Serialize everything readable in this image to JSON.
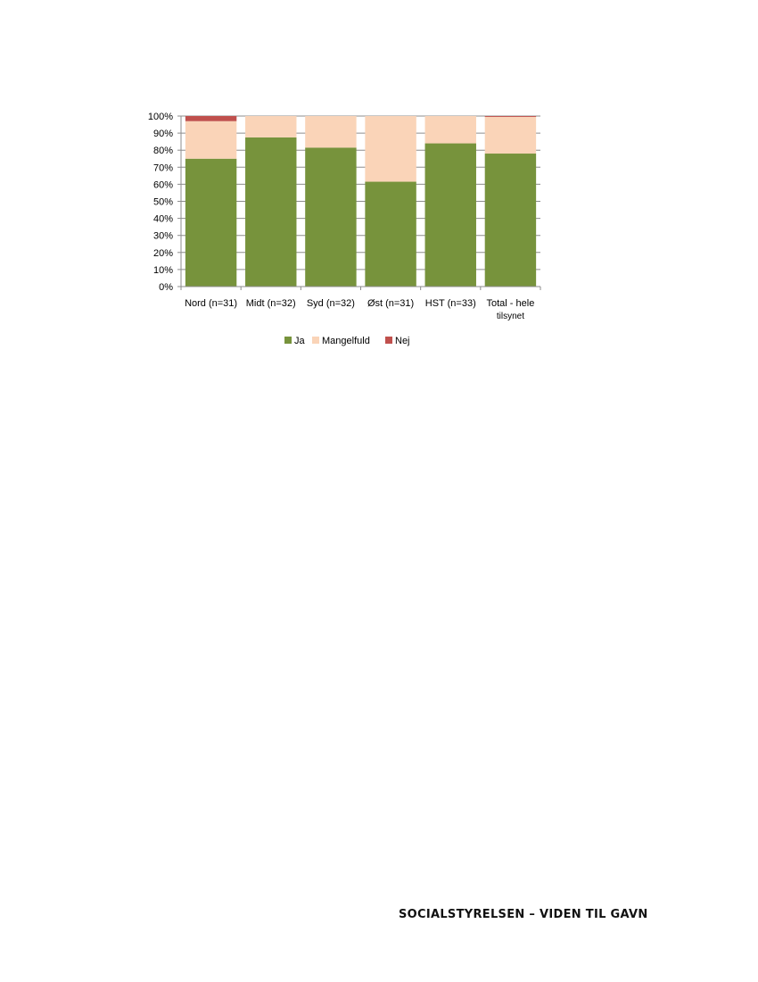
{
  "footer": {
    "text": "SOCIALSTYRELSEN – VIDEN TIL GAVN"
  },
  "chart_data": {
    "type": "bar",
    "stacked": true,
    "percent_axis": true,
    "title": "",
    "xlabel": "",
    "ylabel": "",
    "ylim": [
      0,
      100
    ],
    "yticks": [
      0,
      10,
      20,
      30,
      40,
      50,
      60,
      70,
      80,
      90,
      100
    ],
    "ytick_labels": [
      "0%",
      "10%",
      "20%",
      "30%",
      "40%",
      "50%",
      "60%",
      "70%",
      "80%",
      "90%",
      "100%"
    ],
    "grid": true,
    "legend_position": "bottom",
    "categories": [
      [
        "Nord (n=31)"
      ],
      [
        "Midt (n=32)"
      ],
      [
        "Syd (n=32)"
      ],
      [
        "Øst (n=31)"
      ],
      [
        "HST (n=33)"
      ],
      [
        "Total - hele",
        "tilsynet"
      ]
    ],
    "series": [
      {
        "name": "Ja",
        "color": "#77933C",
        "values": [
          75,
          87.5,
          81.5,
          61.5,
          84,
          78
        ]
      },
      {
        "name": "Mangelfuld",
        "color": "#FAD4B8",
        "values": [
          22,
          12.5,
          18.5,
          38.5,
          16,
          21.5
        ]
      },
      {
        "name": "Nej",
        "color": "#C0504D",
        "values": [
          3,
          0,
          0,
          0,
          0,
          0.5
        ]
      }
    ]
  }
}
